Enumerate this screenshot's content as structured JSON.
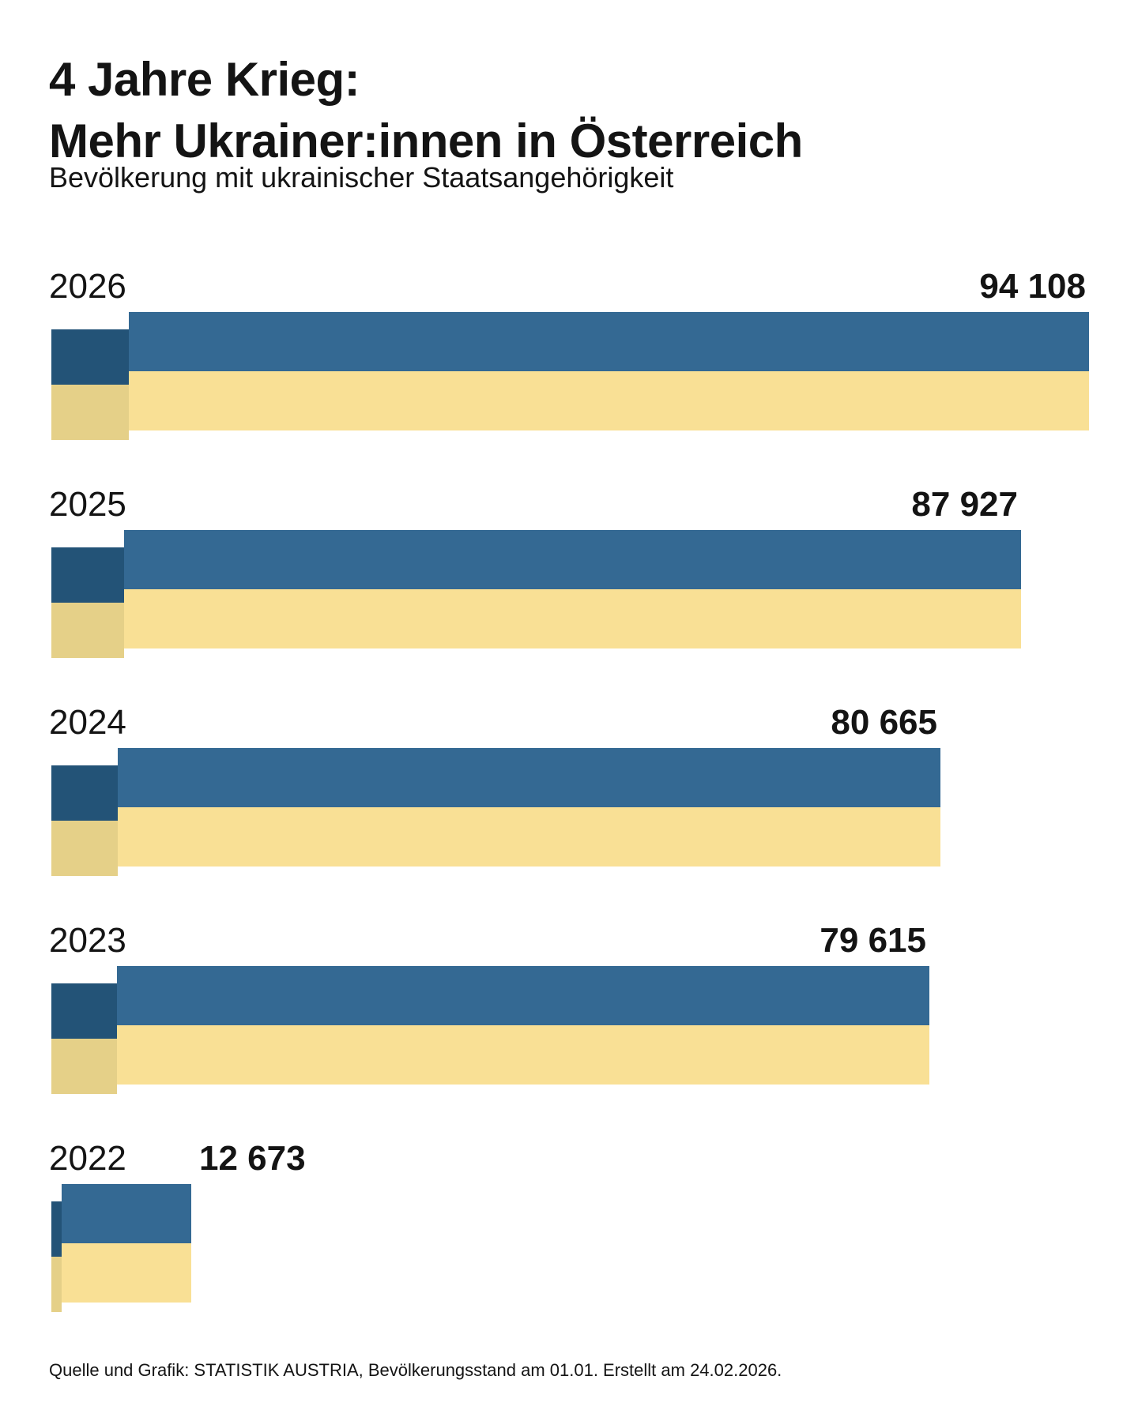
{
  "header": {
    "title_line1": "4 Jahre Krieg:",
    "title_line2": "Mehr Ukrainer:innen in Österreich",
    "subtitle": "Bevölkerung mit ukrainischer Staatsangehörigkeit"
  },
  "footer": {
    "source": "Quelle und Grafik: STATISTIK AUSTRIA, Bevölkerungsstand am 01.01. Erstellt am 24.02.2026."
  },
  "colors": {
    "background": "#ffffff",
    "text": "#141414",
    "flag_blue": "#346993",
    "flag_yellow": "#f9e095",
    "flag_blue_dark": "#235377",
    "flag_yellow_dark": "#e5d088"
  },
  "chart_data": {
    "type": "bar",
    "orientation": "horizontal",
    "title": "4 Jahre Krieg: Mehr Ukrainer:innen in Österreich",
    "subtitle": "Bevölkerung mit ukrainischer Staatsangehörigkeit",
    "categories": [
      "2026",
      "2025",
      "2024",
      "2023",
      "2022"
    ],
    "values": [
      94108,
      87927,
      80665,
      79615,
      12673
    ],
    "value_labels": [
      "94 108",
      "87 927",
      "80 665",
      "79 615",
      "12 673"
    ],
    "xlim": [
      0,
      94108
    ],
    "grid": false,
    "legend": "none",
    "bar_style": "ukraine-flag: blue band over yellow band, with darker offset leading segment",
    "source": "Quelle und Grafik: STATISTIK AUSTRIA, Bevölkerungsstand am 01.01. Erstellt am 24.02.2026."
  }
}
